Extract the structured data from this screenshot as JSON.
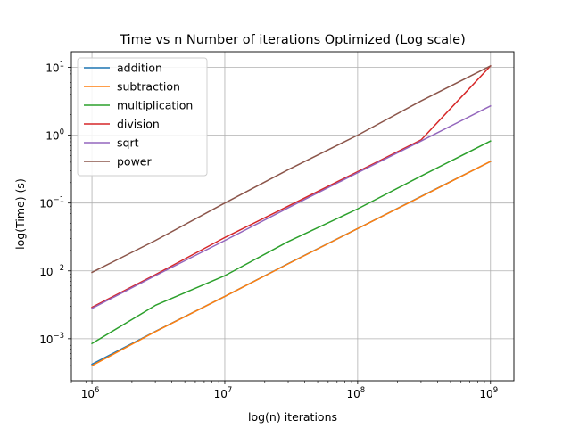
{
  "chart_data": {
    "type": "line",
    "title": "Time vs n Number of iterations Optimized (Log scale)",
    "xlabel": "log(n) iterations",
    "ylabel": "log(Time) (s)",
    "xscale": "log",
    "yscale": "log",
    "xlim": [
      700000,
      1500000000
    ],
    "ylim": [
      0.00024,
      17
    ],
    "grid": true,
    "legend_position": "top-left",
    "x_ticks": [
      {
        "value": 1000000,
        "base": "10",
        "exp": "6"
      },
      {
        "value": 10000000,
        "base": "10",
        "exp": "7"
      },
      {
        "value": 100000000,
        "base": "10",
        "exp": "8"
      },
      {
        "value": 1000000000,
        "base": "10",
        "exp": "9"
      }
    ],
    "y_ticks": [
      {
        "value": 0.001,
        "base": "10",
        "exp": "−3"
      },
      {
        "value": 0.01,
        "base": "10",
        "exp": "−2"
      },
      {
        "value": 0.1,
        "base": "10",
        "exp": "−1"
      },
      {
        "value": 1,
        "base": "10",
        "exp": "0"
      },
      {
        "value": 10,
        "base": "10",
        "exp": "1"
      }
    ],
    "x": [
      1000000,
      3000000,
      10000000,
      30000000,
      100000000,
      300000000,
      1000000000
    ],
    "series": [
      {
        "name": "addition",
        "color": "#1f77b4",
        "values": [
          0.00042,
          0.00128,
          0.0042,
          0.0128,
          0.042,
          0.125,
          0.41
        ]
      },
      {
        "name": "subtraction",
        "color": "#ff7f0e",
        "values": [
          0.0004,
          0.00127,
          0.0042,
          0.0127,
          0.042,
          0.124,
          0.41
        ]
      },
      {
        "name": "multiplication",
        "color": "#2ca02c",
        "values": [
          0.00085,
          0.0031,
          0.0085,
          0.027,
          0.082,
          0.25,
          0.82
        ]
      },
      {
        "name": "division",
        "color": "#d62728",
        "values": [
          0.0029,
          0.0088,
          0.031,
          0.09,
          0.29,
          0.85,
          10.5
        ]
      },
      {
        "name": "sqrt",
        "color": "#9467bd",
        "values": [
          0.0028,
          0.0085,
          0.028,
          0.085,
          0.28,
          0.82,
          2.7
        ]
      },
      {
        "name": "power",
        "color": "#8c564b",
        "values": [
          0.0095,
          0.028,
          0.1,
          0.31,
          1.0,
          3.2,
          10.5
        ]
      }
    ]
  }
}
